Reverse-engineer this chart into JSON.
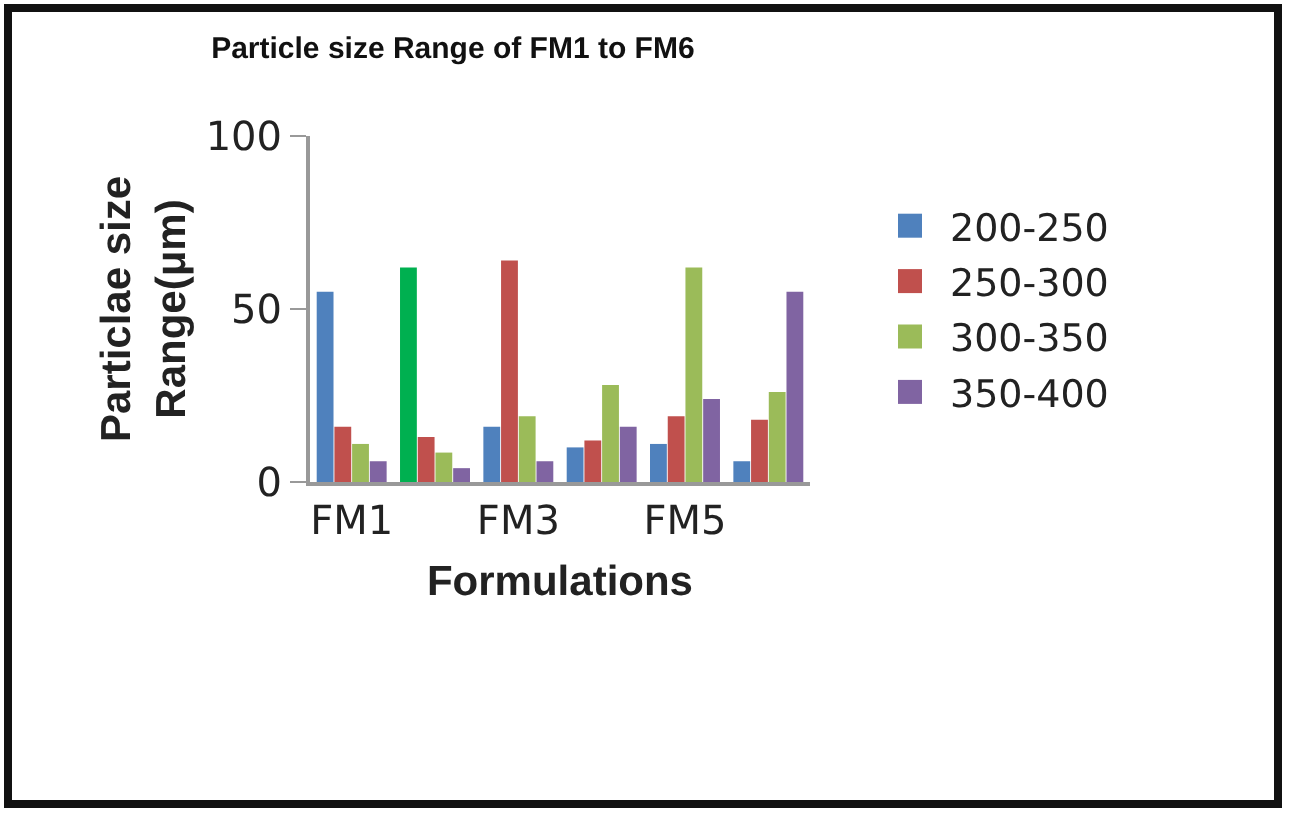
{
  "chart_data": {
    "type": "bar",
    "title": "Particle size Range of FM1 to FM6",
    "xlabel": "Formulations",
    "ylabel": "Particlae size\nRange(μm)",
    "categories": [
      "FM1",
      null,
      "FM3",
      null,
      "FM5",
      null
    ],
    "series": [
      {
        "name": "200-250",
        "color": "#4f81bd",
        "colors": [
          null,
          "#00b050",
          null,
          null,
          null,
          null
        ],
        "values": [
          55,
          62,
          16,
          10,
          11,
          6
        ]
      },
      {
        "name": "250-300",
        "color": "#c0504d",
        "values": [
          16,
          13,
          64,
          12,
          19,
          18
        ]
      },
      {
        "name": "300-350",
        "color": "#9bbb59",
        "values": [
          11,
          8.5,
          19,
          28,
          62,
          26
        ]
      },
      {
        "name": "350-400",
        "color": "#8064a2",
        "values": [
          6,
          4,
          6,
          16,
          24,
          55
        ]
      }
    ],
    "ylim": [
      0,
      100
    ],
    "yticks": [
      0,
      50,
      100
    ],
    "grid": false,
    "legend": "right"
  }
}
